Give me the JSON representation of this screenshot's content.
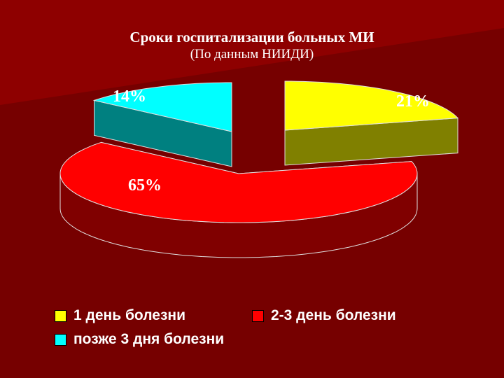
{
  "colors": {
    "background": "#760000",
    "band": "#8e0000",
    "yellow_top": "#ffff00",
    "yellow_side": "#808000",
    "red_top": "#ff0000",
    "red_side": "#800000",
    "cyan_top": "#00ffff",
    "cyan_side": "#008080",
    "outline": "#e0e0e0"
  },
  "chart_data": {
    "type": "pie",
    "style": "3d-exploded",
    "title": "Сроки госпитализации больных МИ",
    "subtitle": "(По данным НИИДИ)",
    "slices": [
      {
        "name": "1 день болезни",
        "value": 21,
        "label": "21%",
        "color": "#ffff00"
      },
      {
        "name": "2-3 день болезни",
        "value": 65,
        "label": "65%",
        "color": "#ff0000"
      },
      {
        "name": "позже 3 дня болезни",
        "value": 14,
        "label": "14%",
        "color": "#00ffff"
      }
    ],
    "legend_position": "bottom"
  }
}
